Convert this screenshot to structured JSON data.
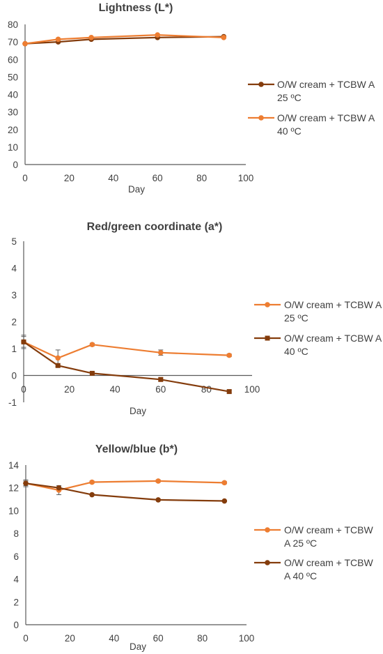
{
  "chart_data": [
    {
      "type": "line",
      "title": "Lightness (L*)",
      "xlabel": "Day",
      "ylabel": "",
      "xlim": [
        0,
        100
      ],
      "ylim": [
        0,
        80
      ],
      "xticks": [
        0,
        20,
        40,
        60,
        80,
        100
      ],
      "yticks": [
        0,
        10,
        20,
        30,
        40,
        50,
        60,
        70,
        80
      ],
      "grid": false,
      "legend_position": "right",
      "series": [
        {
          "name": "O/W cream + TCBW A 25 ºC",
          "legend_lines": [
            "O/W cream + TCBW A",
            "25 ºC"
          ],
          "color": "#843C0C",
          "marker": "circle",
          "x": [
            0,
            15,
            30,
            60,
            90
          ],
          "y": [
            69,
            70,
            71.5,
            72.5,
            73
          ]
        },
        {
          "name": "O/W cream + TCBW A 40 ºC",
          "legend_lines": [
            "O/W cream + TCBW A",
            "40 ºC"
          ],
          "color": "#ED7D31",
          "marker": "circle",
          "x": [
            0,
            15,
            30,
            60,
            90
          ],
          "y": [
            69,
            71.5,
            72.5,
            74,
            72.5
          ]
        }
      ]
    },
    {
      "type": "line",
      "title": "Red/green coordinate (a*)",
      "xlabel": "Day",
      "ylabel": "",
      "xlim": [
        0,
        100
      ],
      "ylim": [
        -1,
        5
      ],
      "xticks": [
        0,
        20,
        40,
        60,
        80,
        100
      ],
      "yticks": [
        -1,
        0,
        1,
        2,
        3,
        4,
        5
      ],
      "grid": false,
      "legend_position": "right",
      "series": [
        {
          "name": "O/W cream + TCBW A 25 ºC",
          "legend_lines": [
            "O/W cream + TCBW A",
            "25 ºC"
          ],
          "color": "#ED7D31",
          "marker": "circle",
          "x": [
            0,
            15,
            30,
            60,
            90
          ],
          "y": [
            1.25,
            0.65,
            1.15,
            0.85,
            0.75
          ],
          "error": [
            0.25,
            0.3,
            0.05,
            0.1,
            0.05
          ]
        },
        {
          "name": "O/W cream + TCBW A 40 ºC",
          "legend_lines": [
            "O/W cream + TCBW A",
            "40 ºC"
          ],
          "color": "#843C0C",
          "marker": "square",
          "x": [
            0,
            15,
            30,
            60,
            90
          ],
          "y": [
            1.25,
            0.37,
            0.08,
            -0.15,
            -0.6
          ],
          "error": [
            0.2,
            0.05,
            0.05,
            0.05,
            0.05
          ]
        }
      ]
    },
    {
      "type": "line",
      "title": "Yellow/blue (b*)",
      "xlabel": "Day",
      "ylabel": "",
      "xlim": [
        0,
        100
      ],
      "ylim": [
        0,
        14
      ],
      "xticks": [
        0,
        20,
        40,
        60,
        80,
        100
      ],
      "yticks": [
        0,
        2,
        4,
        6,
        8,
        10,
        12,
        14
      ],
      "grid": false,
      "legend_position": "right",
      "series": [
        {
          "name": "O/W cream + TCBW A 25 ºC",
          "legend_lines": [
            "O/W cream + TCBW",
            "A 25 ºC"
          ],
          "color": "#ED7D31",
          "marker": "circle",
          "x": [
            0,
            15,
            30,
            60,
            90
          ],
          "y": [
            12.4,
            11.8,
            12.5,
            12.6,
            12.45
          ],
          "error": [
            0.3,
            0.4,
            0.1,
            0.1,
            0.1
          ]
        },
        {
          "name": "O/W cream + TCBW A 40 ºC",
          "legend_lines": [
            "O/W cream + TCBW",
            "A 40 ºC"
          ],
          "color": "#843C0C",
          "marker": "circle",
          "x": [
            0,
            15,
            30,
            60,
            90
          ],
          "y": [
            12.4,
            12.0,
            11.4,
            10.95,
            10.85
          ],
          "error": [
            0.2,
            0.1,
            0.05,
            0.05,
            0.05
          ]
        }
      ]
    }
  ]
}
